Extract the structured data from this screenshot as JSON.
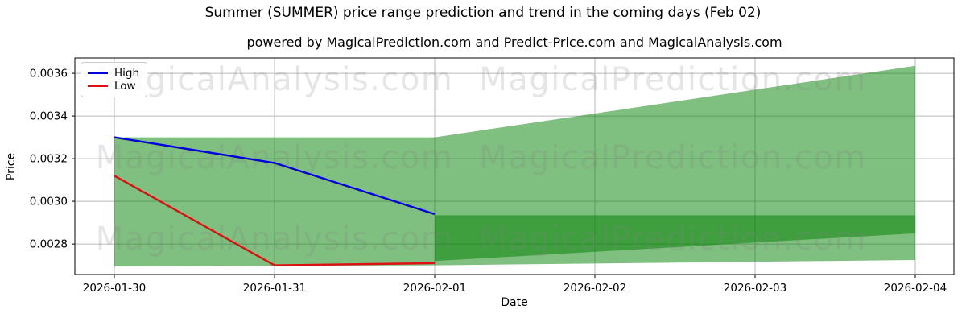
{
  "header": {
    "title": "Summer (SUMMER) price range prediction and trend in the coming days (Feb 02)",
    "subtitle": "powered by MagicalPrediction.com and Predict-Price.com and MagicalAnalysis.com"
  },
  "axes": {
    "price_label": "Price",
    "date_label": "Date"
  },
  "legend": {
    "items": [
      {
        "label": "High",
        "color": "#0000dd"
      },
      {
        "label": "Low",
        "color": "#dd1111"
      }
    ]
  },
  "watermarks": {
    "left_text": "MagicalAnalysis.com",
    "right_text": "MagicalPrediction.com"
  },
  "chart_data": {
    "type": "line",
    "title": "Summer (SUMMER) price range prediction and trend in the coming days (Feb 02)",
    "xlabel": "Date",
    "ylabel": "Price",
    "categories": [
      "2026-01-30",
      "2026-01-31",
      "2026-02-01",
      "2026-02-02",
      "2026-02-03",
      "2026-02-04"
    ],
    "yticks": [
      0.0028,
      0.003,
      0.0032,
      0.0034,
      0.0036
    ],
    "ytick_labels": [
      "0.0028",
      "0.0030",
      "0.0032",
      "0.0034",
      "0.0036"
    ],
    "ylim": [
      0.002657,
      0.003672
    ],
    "grid": true,
    "grid_color": "#b9b9b9",
    "spine_color": "#000000",
    "legend_position": "upper left",
    "series": [
      {
        "name": "High",
        "color": "#0000dd",
        "line_width": 2.4,
        "x": [
          0,
          1,
          2
        ],
        "values": [
          0.0033,
          0.00318,
          0.00294
        ]
      },
      {
        "name": "Low",
        "color": "#dd1111",
        "line_width": 2.4,
        "x": [
          0,
          1,
          2
        ],
        "values": [
          0.00312,
          0.0027,
          0.00271
        ]
      }
    ],
    "bands": [
      {
        "name": "high-low-range-band",
        "color": "#008000",
        "opacity": 0.5,
        "top": [
          [
            0,
            0.0033
          ],
          [
            2,
            0.0033
          ],
          [
            5,
            0.003635
          ]
        ],
        "bottom": [
          [
            0,
            0.002695
          ],
          [
            2,
            0.0027
          ],
          [
            5,
            0.002725
          ]
        ]
      },
      {
        "name": "forecast-range-band",
        "color": "#008000",
        "opacity": 0.5,
        "top": [
          [
            2,
            0.002935
          ],
          [
            5,
            0.002935
          ]
        ],
        "bottom": [
          [
            2,
            0.00272
          ],
          [
            5,
            0.00285
          ]
        ]
      }
    ]
  }
}
